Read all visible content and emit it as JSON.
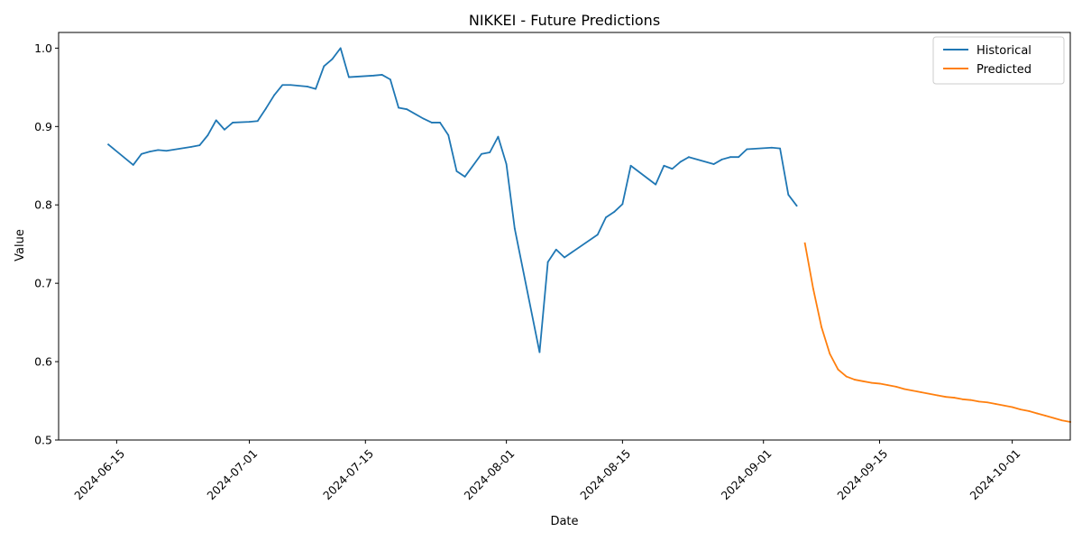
{
  "chart_data": {
    "type": "line",
    "title": "NIKKEI - Future Predictions",
    "xlabel": "Date",
    "ylabel": "Value",
    "xlim": [
      "2024-06-08",
      "2024-10-08"
    ],
    "ylim": [
      0.5,
      1.02
    ],
    "x_ticks": [
      "2024-06-15",
      "2024-07-01",
      "2024-07-15",
      "2024-08-01",
      "2024-08-15",
      "2024-09-01",
      "2024-09-15",
      "2024-10-01"
    ],
    "y_ticks": [
      "0.5",
      "0.6",
      "0.7",
      "0.8",
      "0.9",
      "1.0"
    ],
    "grid": false,
    "legend_position": "top-right",
    "series": [
      {
        "name": "Historical",
        "color": "#1f77b4",
        "points": [
          [
            "2024-06-14",
            0.877
          ],
          [
            "2024-06-17",
            0.851
          ],
          [
            "2024-06-18",
            0.865
          ],
          [
            "2024-06-19",
            0.868
          ],
          [
            "2024-06-20",
            0.87
          ],
          [
            "2024-06-21",
            0.869
          ],
          [
            "2024-06-24",
            0.874
          ],
          [
            "2024-06-25",
            0.876
          ],
          [
            "2024-06-26",
            0.889
          ],
          [
            "2024-06-27",
            0.908
          ],
          [
            "2024-06-28",
            0.896
          ],
          [
            "2024-06-29",
            0.905
          ],
          [
            "2024-07-01",
            0.906
          ],
          [
            "2024-07-02",
            0.907
          ],
          [
            "2024-07-03",
            0.923
          ],
          [
            "2024-07-04",
            0.94
          ],
          [
            "2024-07-05",
            0.953
          ],
          [
            "2024-07-06",
            0.953
          ],
          [
            "2024-07-08",
            0.951
          ],
          [
            "2024-07-09",
            0.948
          ],
          [
            "2024-07-10",
            0.977
          ],
          [
            "2024-07-11",
            0.986
          ],
          [
            "2024-07-12",
            1.0
          ],
          [
            "2024-07-13",
            0.963
          ],
          [
            "2024-07-16",
            0.965
          ],
          [
            "2024-07-17",
            0.966
          ],
          [
            "2024-07-18",
            0.96
          ],
          [
            "2024-07-19",
            0.924
          ],
          [
            "2024-07-20",
            0.922
          ],
          [
            "2024-07-22",
            0.91
          ],
          [
            "2024-07-23",
            0.905
          ],
          [
            "2024-07-24",
            0.905
          ],
          [
            "2024-07-25",
            0.889
          ],
          [
            "2024-07-26",
            0.843
          ],
          [
            "2024-07-27",
            0.836
          ],
          [
            "2024-07-29",
            0.865
          ],
          [
            "2024-07-30",
            0.867
          ],
          [
            "2024-07-31",
            0.887
          ],
          [
            "2024-08-01",
            0.852
          ],
          [
            "2024-08-02",
            0.77
          ],
          [
            "2024-08-05",
            0.612
          ],
          [
            "2024-08-06",
            0.727
          ],
          [
            "2024-08-07",
            0.743
          ],
          [
            "2024-08-08",
            0.733
          ],
          [
            "2024-08-12",
            0.762
          ],
          [
            "2024-08-13",
            0.784
          ],
          [
            "2024-08-14",
            0.791
          ],
          [
            "2024-08-15",
            0.801
          ],
          [
            "2024-08-16",
            0.85
          ],
          [
            "2024-08-19",
            0.826
          ],
          [
            "2024-08-20",
            0.85
          ],
          [
            "2024-08-21",
            0.846
          ],
          [
            "2024-08-22",
            0.855
          ],
          [
            "2024-08-23",
            0.861
          ],
          [
            "2024-08-26",
            0.852
          ],
          [
            "2024-08-27",
            0.858
          ],
          [
            "2024-08-28",
            0.861
          ],
          [
            "2024-08-29",
            0.861
          ],
          [
            "2024-08-30",
            0.871
          ],
          [
            "2024-09-02",
            0.873
          ],
          [
            "2024-09-03",
            0.872
          ],
          [
            "2024-09-04",
            0.813
          ],
          [
            "2024-09-05",
            0.799
          ]
        ]
      },
      {
        "name": "Predicted",
        "color": "#ff7f0e",
        "points": [
          [
            "2024-09-06",
            0.751
          ],
          [
            "2024-09-07",
            0.693
          ],
          [
            "2024-09-08",
            0.644
          ],
          [
            "2024-09-09",
            0.61
          ],
          [
            "2024-09-10",
            0.59
          ],
          [
            "2024-09-11",
            0.581
          ],
          [
            "2024-09-12",
            0.577
          ],
          [
            "2024-09-13",
            0.575
          ],
          [
            "2024-09-14",
            0.573
          ],
          [
            "2024-09-15",
            0.572
          ],
          [
            "2024-09-16",
            0.57
          ],
          [
            "2024-09-17",
            0.568
          ],
          [
            "2024-09-18",
            0.565
          ],
          [
            "2024-09-19",
            0.563
          ],
          [
            "2024-09-20",
            0.561
          ],
          [
            "2024-09-21",
            0.559
          ],
          [
            "2024-09-22",
            0.557
          ],
          [
            "2024-09-23",
            0.555
          ],
          [
            "2024-09-24",
            0.554
          ],
          [
            "2024-09-25",
            0.552
          ],
          [
            "2024-09-26",
            0.551
          ],
          [
            "2024-09-27",
            0.549
          ],
          [
            "2024-09-28",
            0.548
          ],
          [
            "2024-09-29",
            0.546
          ],
          [
            "2024-09-30",
            0.544
          ],
          [
            "2024-10-01",
            0.542
          ],
          [
            "2024-10-02",
            0.539
          ],
          [
            "2024-10-03",
            0.537
          ],
          [
            "2024-10-04",
            0.534
          ],
          [
            "2024-10-05",
            0.531
          ],
          [
            "2024-10-06",
            0.528
          ],
          [
            "2024-10-07",
            0.525
          ],
          [
            "2024-10-08",
            0.523
          ]
        ]
      }
    ]
  }
}
